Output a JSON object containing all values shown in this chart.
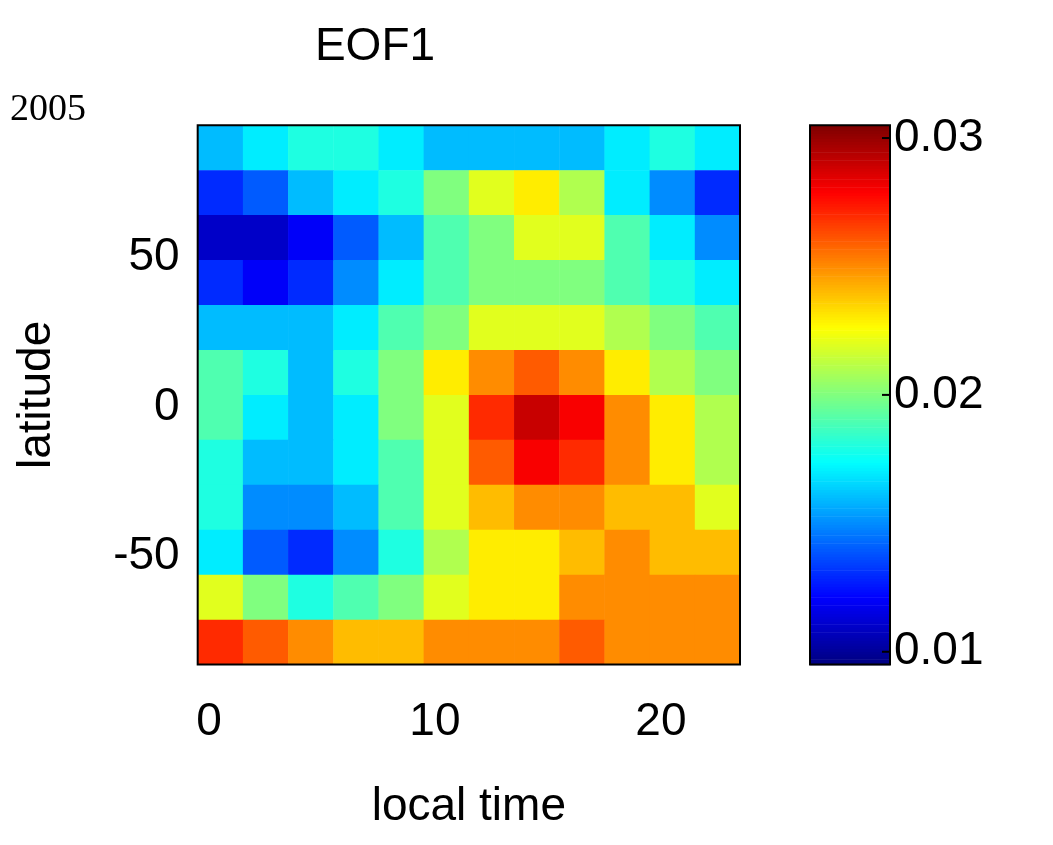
{
  "chart_data": {
    "type": "heatmap",
    "title": "EOF1",
    "xlabel": "local time",
    "ylabel": "latitude",
    "annotations": [
      "2005"
    ],
    "x": [
      0.5,
      2.5,
      4.5,
      6.5,
      8.5,
      10.5,
      12.5,
      14.5,
      16.5,
      18.5,
      20.5,
      22.5
    ],
    "y": [
      86.5,
      71.5,
      56.5,
      41.5,
      26.5,
      11.5,
      -3.5,
      -18.5,
      -33.5,
      -48.5,
      -63.5,
      -78.5
    ],
    "cells": [
      [
        0.016,
        0.017,
        0.018,
        0.018,
        0.017,
        0.016,
        0.016,
        0.016,
        0.016,
        0.017,
        0.018,
        0.017
      ],
      [
        0.013,
        0.014,
        0.016,
        0.017,
        0.018,
        0.02,
        0.022,
        0.023,
        0.021,
        0.017,
        0.015,
        0.013
      ],
      [
        0.011,
        0.011,
        0.012,
        0.014,
        0.016,
        0.019,
        0.02,
        0.022,
        0.022,
        0.019,
        0.017,
        0.015
      ],
      [
        0.013,
        0.012,
        0.013,
        0.015,
        0.017,
        0.019,
        0.02,
        0.02,
        0.02,
        0.019,
        0.018,
        0.017
      ],
      [
        0.016,
        0.016,
        0.016,
        0.017,
        0.019,
        0.02,
        0.022,
        0.022,
        0.022,
        0.021,
        0.02,
        0.019
      ],
      [
        0.019,
        0.018,
        0.016,
        0.018,
        0.02,
        0.023,
        0.025,
        0.026,
        0.025,
        0.023,
        0.021,
        0.02
      ],
      [
        0.019,
        0.017,
        0.016,
        0.017,
        0.02,
        0.022,
        0.027,
        0.029,
        0.028,
        0.025,
        0.023,
        0.021
      ],
      [
        0.018,
        0.016,
        0.016,
        0.017,
        0.019,
        0.022,
        0.026,
        0.028,
        0.027,
        0.025,
        0.023,
        0.021
      ],
      [
        0.018,
        0.015,
        0.015,
        0.016,
        0.019,
        0.022,
        0.024,
        0.025,
        0.025,
        0.024,
        0.024,
        0.022
      ],
      [
        0.017,
        0.014,
        0.013,
        0.015,
        0.018,
        0.021,
        0.023,
        0.023,
        0.024,
        0.025,
        0.024,
        0.024
      ],
      [
        0.022,
        0.02,
        0.018,
        0.019,
        0.02,
        0.022,
        0.023,
        0.023,
        0.025,
        0.025,
        0.025,
        0.025
      ],
      [
        0.027,
        0.026,
        0.025,
        0.024,
        0.024,
        0.025,
        0.025,
        0.025,
        0.026,
        0.025,
        0.025,
        0.025
      ]
    ],
    "xlim": [
      -0.5,
      23.5
    ],
    "ylim": [
      -86,
      94
    ],
    "xticks": [
      0,
      10,
      20
    ],
    "yticks": [
      -50,
      0,
      50
    ],
    "clim": [
      0.0095,
      0.0305
    ],
    "cticks": [
      0.01,
      0.02,
      0.03
    ]
  }
}
